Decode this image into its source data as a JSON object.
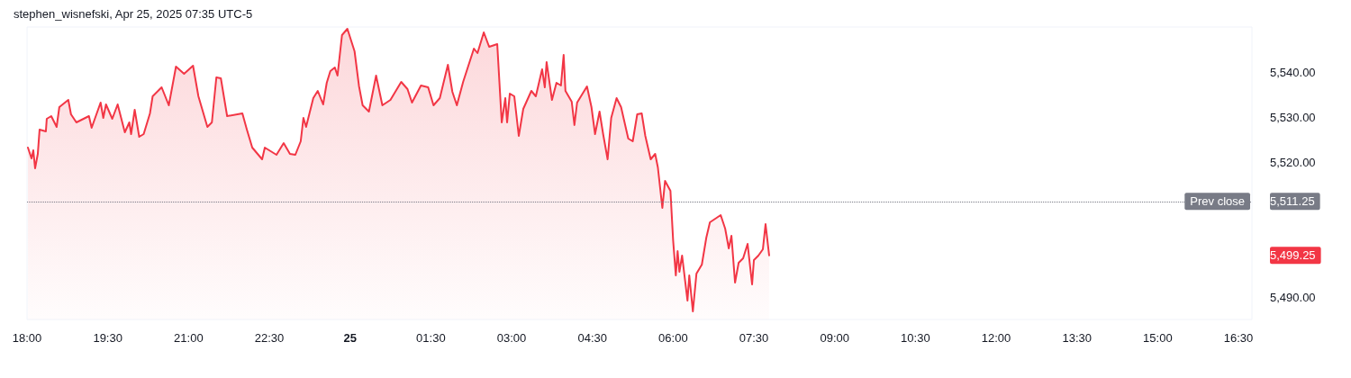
{
  "chart_data": {
    "type": "area",
    "title": "stephen_wisnefski, Apr 25, 2025 07:35 UTC-5",
    "x": [
      "2025-04-24T18:01",
      "2025-04-24T18:05",
      "2025-04-24T18:07",
      "2025-04-24T18:09",
      "2025-04-24T18:12",
      "2025-04-24T18:14",
      "2025-04-24T18:21",
      "2025-04-24T18:22",
      "2025-04-24T18:27",
      "2025-04-24T18:33",
      "2025-04-24T18:36",
      "2025-04-24T18:46",
      "2025-04-24T18:49",
      "2025-04-24T18:55",
      "2025-04-24T19:09",
      "2025-04-24T19:12",
      "2025-04-24T19:22",
      "2025-04-24T19:25",
      "2025-04-24T19:28",
      "2025-04-24T19:35",
      "2025-04-24T19:41",
      "2025-04-24T19:49",
      "2025-04-24T19:54",
      "2025-04-24T19:56",
      "2025-04-24T20:00",
      "2025-04-24T20:05",
      "2025-04-24T20:10",
      "2025-04-24T20:17",
      "2025-04-24T20:20",
      "2025-04-24T20:30",
      "2025-04-24T20:38",
      "2025-04-24T20:46",
      "2025-04-24T20:55",
      "2025-04-24T21:05",
      "2025-04-24T21:11",
      "2025-04-24T21:21",
      "2025-04-24T21:26",
      "2025-04-24T21:31",
      "2025-04-24T21:36",
      "2025-04-24T21:43",
      "2025-04-24T22:00",
      "2025-04-24T22:05",
      "2025-04-24T22:11",
      "2025-04-24T22:22",
      "2025-04-24T22:25",
      "2025-04-24T22:38",
      "2025-04-24T22:46",
      "2025-04-24T22:53",
      "2025-04-24T22:59",
      "2025-04-24T23:05",
      "2025-04-24T23:08",
      "2025-04-24T23:11",
      "2025-04-24T23:19",
      "2025-04-24T23:24",
      "2025-04-24T23:30",
      "2025-04-24T23:34",
      "2025-04-24T23:38",
      "2025-04-24T23:43",
      "2025-04-24T23:46",
      "2025-04-24T23:51",
      "2025-04-24T23:57",
      "2025-04-25T00:05",
      "2025-04-25T00:10",
      "2025-04-25T00:14",
      "2025-04-25T00:21",
      "2025-04-25T00:29",
      "2025-04-25T00:36",
      "2025-04-25T00:45",
      "2025-04-25T00:57",
      "2025-04-25T01:04",
      "2025-04-25T01:09",
      "2025-04-25T01:19",
      "2025-04-25T01:27",
      "2025-04-25T01:33",
      "2025-04-25T01:40",
      "2025-04-25T01:49",
      "2025-04-25T01:54",
      "2025-04-25T01:59",
      "2025-04-25T02:06",
      "2025-04-25T02:18",
      "2025-04-25T02:22",
      "2025-04-25T02:29",
      "2025-04-25T02:35",
      "2025-04-25T02:44",
      "2025-04-25T02:49",
      "2025-04-25T02:53",
      "2025-04-25T02:55",
      "2025-04-25T02:58",
      "2025-04-25T03:03",
      "2025-04-25T03:08",
      "2025-04-25T03:13",
      "2025-04-25T03:22",
      "2025-04-25T03:27",
      "2025-04-25T03:34",
      "2025-04-25T03:37",
      "2025-04-25T03:39",
      "2025-04-25T03:45",
      "2025-04-25T03:50",
      "2025-04-25T03:55",
      "2025-04-25T03:58",
      "2025-04-25T04:00",
      "2025-04-25T04:07",
      "2025-04-25T04:10",
      "2025-04-25T04:13",
      "2025-04-25T04:24",
      "2025-04-25T04:29",
      "2025-04-25T04:33",
      "2025-04-25T04:38",
      "2025-04-25T04:42",
      "2025-04-25T04:47",
      "2025-04-25T04:51",
      "2025-04-25T04:57",
      "2025-04-25T05:02",
      "2025-04-25T05:10",
      "2025-04-25T05:15",
      "2025-04-25T05:20",
      "2025-04-25T05:25",
      "2025-04-25T05:29",
      "2025-04-25T05:35",
      "2025-04-25T05:40",
      "2025-04-25T05:43",
      "2025-04-25T05:48",
      "2025-04-25T05:51",
      "2025-04-25T05:57",
      "2025-04-25T06:00",
      "2025-04-25T06:03",
      "2025-04-25T06:05",
      "2025-04-25T06:07",
      "2025-04-25T06:10",
      "2025-04-25T06:16",
      "2025-04-25T06:18",
      "2025-04-25T06:22",
      "2025-04-25T06:26",
      "2025-04-25T06:32",
      "2025-04-25T06:37",
      "2025-04-25T06:41",
      "2025-04-25T06:53",
      "2025-04-25T06:58",
      "2025-04-25T07:02",
      "2025-04-25T07:05",
      "2025-04-25T07:09",
      "2025-04-25T07:13",
      "2025-04-25T07:18",
      "2025-04-25T07:23",
      "2025-04-25T07:28",
      "2025-04-25T07:30",
      "2025-04-25T07:35",
      "2025-04-25T07:40",
      "2025-04-25T07:43",
      "2025-04-25T07:47"
    ],
    "series": [
      {
        "color": "#f23645",
        "values": [
          5523.2,
          5520.8,
          5522.6,
          5518.6,
          5521.8,
          5527.2,
          5526.8,
          5529.6,
          5530.2,
          5527.8,
          5532.2,
          5533.8,
          5530.6,
          5528.8,
          5530.2,
          5527.6,
          5533.2,
          5529.8,
          5532.8,
          5529.6,
          5532.8,
          5526.6,
          5528.8,
          5526.2,
          5531.6,
          5525.6,
          5526.2,
          5530.8,
          5534.6,
          5536.6,
          5532.6,
          5541.2,
          5539.6,
          5541.4,
          5534.6,
          5527.8,
          5528.8,
          5538.8,
          5538.6,
          5530.2,
          5530.8,
          5527.2,
          5523.2,
          5520.6,
          5523.2,
          5521.6,
          5524.2,
          5521.8,
          5521.6,
          5524.6,
          5529.8,
          5527.8,
          5534.2,
          5535.8,
          5532.8,
          5537.6,
          5540.2,
          5541.0,
          5539.2,
          5548.2,
          5549.6,
          5544.6,
          5536.8,
          5532.6,
          5531.2,
          5539.2,
          5532.6,
          5533.8,
          5537.8,
          5536.2,
          5533.2,
          5537.0,
          5536.6,
          5532.6,
          5534.2,
          5541.6,
          5535.6,
          5532.6,
          5537.8,
          5545.2,
          5544.2,
          5548.8,
          5545.6,
          5546.2,
          5528.8,
          5534.2,
          5528.8,
          5535.2,
          5534.6,
          5525.8,
          5531.8,
          5535.8,
          5534.6,
          5540.6,
          5536.6,
          5542.2,
          5533.8,
          5537.6,
          5537.0,
          5543.8,
          5535.8,
          5533.4,
          5528.2,
          5533.2,
          5536.8,
          5532.2,
          5526.2,
          5531.2,
          5526.2,
          5520.6,
          5529.8,
          5534.2,
          5532.2,
          5525.2,
          5524.6,
          5530.6,
          5530.8,
          5525.8,
          5520.6,
          5521.8,
          5518.8,
          5509.8,
          5515.8,
          5513.6,
          5502.6,
          5494.8,
          5500.2,
          5495.6,
          5499.2,
          5489.2,
          5494.8,
          5486.8,
          5495.2,
          5497.2,
          5503.2,
          5506.6,
          5508.2,
          5505.2,
          5500.8,
          5503.6,
          5493.2,
          5497.6,
          5498.6,
          5501.8,
          5492.8,
          5498.2,
          5499.2,
          5500.6,
          5506.2,
          5499.25
        ]
      }
    ],
    "xlim": [
      "2025-04-24T18:00",
      "2025-04-25T16:45"
    ],
    "xticks": [
      {
        "value": "2025-04-24T18:00",
        "label": "18:00"
      },
      {
        "value": "2025-04-24T19:30",
        "label": "19:30"
      },
      {
        "value": "2025-04-24T21:00",
        "label": "21:00"
      },
      {
        "value": "2025-04-24T22:30",
        "label": "22:30"
      },
      {
        "value": "2025-04-25T00:00",
        "label": "25"
      },
      {
        "value": "2025-04-25T01:30",
        "label": "01:30"
      },
      {
        "value": "2025-04-25T03:00",
        "label": "03:00"
      },
      {
        "value": "2025-04-25T04:30",
        "label": "04:30"
      },
      {
        "value": "2025-04-25T06:00",
        "label": "06:00"
      },
      {
        "value": "2025-04-25T07:30",
        "label": "07:30"
      },
      {
        "value": "2025-04-25T09:00",
        "label": "09:00"
      },
      {
        "value": "2025-04-25T10:30",
        "label": "10:30"
      },
      {
        "value": "2025-04-25T12:00",
        "label": "12:00"
      },
      {
        "value": "2025-04-25T13:30",
        "label": "13:30"
      },
      {
        "value": "2025-04-25T15:00",
        "label": "15:00"
      },
      {
        "value": "2025-04-25T16:30",
        "label": "16:30"
      }
    ],
    "ylim": [
      5485,
      5550
    ],
    "yticks": [
      {
        "value": 5490,
        "label": "5,490.00"
      },
      {
        "value": 5499.25,
        "label": "5,499.25"
      },
      {
        "value": 5511.25,
        "label": "5,511.25"
      },
      {
        "value": 5520,
        "label": "5,520.00"
      },
      {
        "value": 5530,
        "label": "5,530.00"
      },
      {
        "value": 5540,
        "label": "5,540.00"
      }
    ],
    "ref_lines": [
      {
        "axis": "y",
        "value": 5511.25,
        "label": "Prev close",
        "color": "#787b86",
        "line_style": "dotted"
      }
    ],
    "grid": false,
    "marker": "none",
    "line_style": "solid"
  }
}
